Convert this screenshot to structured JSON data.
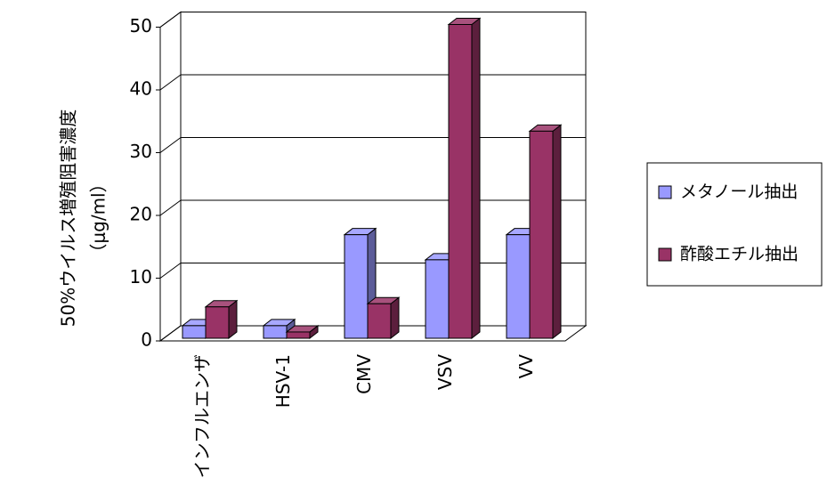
{
  "chart_data": {
    "type": "bar3d",
    "y_label": "50%ウイルス増殖阻害濃度",
    "y_unit": "（μg/ml）",
    "categories": [
      "インフルエンザ",
      "HSV-1",
      "CMV",
      "VSV",
      "VV"
    ],
    "series": [
      {
        "name": "メタノール抽出",
        "color": "#9999ff",
        "values": [
          2,
          2,
          16.5,
          12.5,
          16.5
        ]
      },
      {
        "name": "酢酸エチル抽出",
        "color": "#993366",
        "values": [
          5,
          1,
          5.5,
          50,
          33
        ]
      }
    ],
    "ylim": [
      0,
      50
    ],
    "yticks": [
      0,
      10,
      20,
      30,
      40,
      50
    ],
    "grid": true
  }
}
